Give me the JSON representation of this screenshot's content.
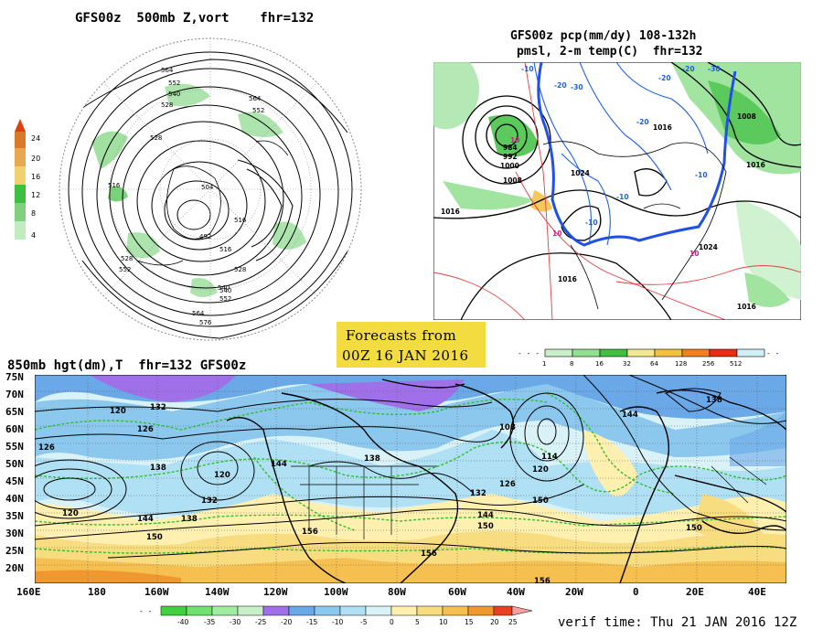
{
  "panel_tl": {
    "title": "GFS00z  500mb Z,vort    fhr=132",
    "contour_labels": [
      "564",
      "552",
      "540",
      "528",
      "528",
      "516",
      "504",
      "492",
      "516",
      "528",
      "540",
      "552",
      "564",
      "576",
      "564",
      "552",
      "516",
      "528",
      "552",
      "540"
    ],
    "colorbar": {
      "labels": [
        "24",
        "20",
        "16",
        "12",
        "8",
        "4"
      ],
      "colors": [
        "#d97a2a",
        "#e8a850",
        "#f2d070",
        "#3fbf3f",
        "#80d080",
        "#c0ecc0"
      ]
    }
  },
  "panel_tr": {
    "title_line1": "GFS00z pcp(mm/dy) 108-132h",
    "title_line2": "pmsl, 2-m temp(C)  fhr=132",
    "isobar_labels": [
      "984",
      "992",
      "1000",
      "1008",
      "1016",
      "1016",
      "1024",
      "1008",
      "1016",
      "1024",
      "1016",
      "1016"
    ],
    "temp_labels": [
      "-10",
      "-20",
      "-30",
      "-20",
      "-10",
      "-10",
      "-10",
      "10",
      "10",
      "10",
      "-20",
      "-30",
      "-20"
    ],
    "colorbar": {
      "labels": [
        "1",
        "8",
        "16",
        "32",
        "64",
        "128",
        "256",
        "512"
      ],
      "colors": [
        "#c8f0c8",
        "#90e090",
        "#40c040",
        "#f2e890",
        "#f2c040",
        "#f08020",
        "#e83010",
        "#d0f0f8"
      ]
    }
  },
  "forecast_box": {
    "line1": "Forecasts from",
    "line2": "00Z 16 JAN 2016"
  },
  "panel_bottom": {
    "title": "850mb hgt(dm),T  fhr=132 GFS00z",
    "lat_labels": [
      "75N",
      "70N",
      "65N",
      "60N",
      "55N",
      "50N",
      "45N",
      "40N",
      "35N",
      "30N",
      "25N",
      "20N"
    ],
    "lon_labels": [
      "160E",
      "180",
      "160W",
      "140W",
      "120W",
      "100W",
      "80W",
      "60W",
      "40W",
      "20W",
      "0",
      "20E",
      "40E"
    ],
    "height_labels": [
      "132",
      "126",
      "120",
      "132",
      "138",
      "120",
      "144",
      "150",
      "156",
      "138",
      "144",
      "108",
      "114",
      "120",
      "126",
      "132",
      "138",
      "144",
      "150",
      "156",
      "150",
      "138",
      "144",
      "150",
      "126",
      "120",
      "156"
    ],
    "colorbar": {
      "labels": [
        "-40",
        "-35",
        "-30",
        "-25",
        "-20",
        "-15",
        "-10",
        "-5",
        "0",
        "5",
        "10",
        "15",
        "20",
        "25"
      ],
      "colors": [
        "#40d040",
        "#70e070",
        "#a0eca0",
        "#c8f0c8",
        "#a070e8",
        "#6aa8e8",
        "#8cc8ee",
        "#b0e0f4",
        "#d8f2f8",
        "#fff0b0",
        "#f8dc80",
        "#f6c050",
        "#f09830",
        "#e84020",
        "#f6a0a0"
      ]
    }
  },
  "verif_time": "verif time: Thu 21 JAN 2016 12Z"
}
